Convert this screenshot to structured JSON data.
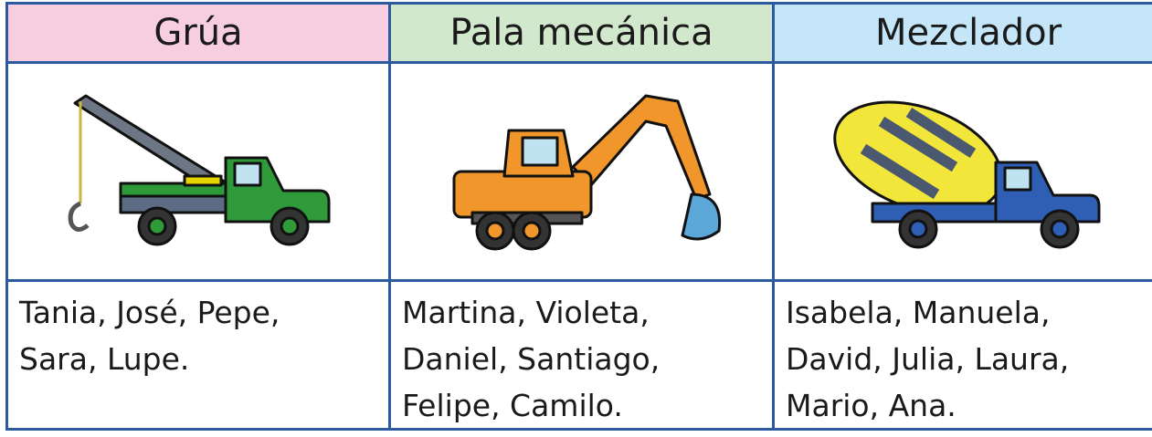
{
  "table": {
    "headers": [
      "Grúa",
      "Pala mecánica",
      "Mezclador"
    ],
    "names": [
      [
        "Tania, José, Pepe,",
        "Sara, Lupe."
      ],
      [
        "Martina, Violeta,",
        "Daniel, Santiago,",
        "Felipe, Camilo."
      ],
      [
        "Isabela, Manuela,",
        "David, Julia, Laura,",
        "Mario, Ana."
      ]
    ]
  }
}
